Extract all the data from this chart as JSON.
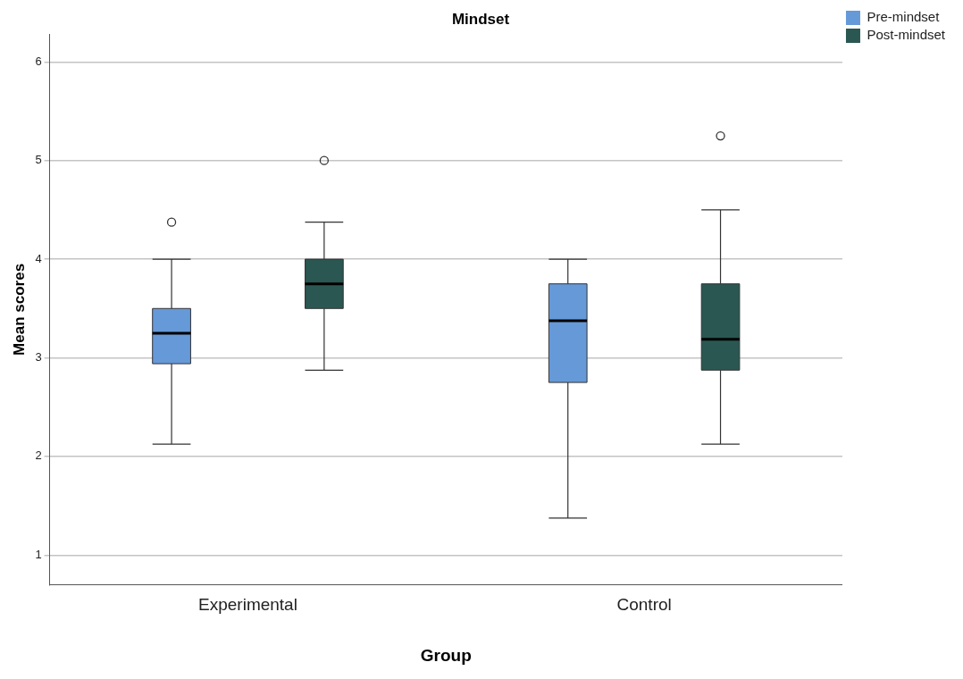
{
  "chart_data": {
    "type": "box",
    "title": "Mindset",
    "xlabel": "Group",
    "ylabel": "Mean scores",
    "categories": [
      "Experimental",
      "Control"
    ],
    "series": [
      {
        "name": "Pre-mindset",
        "color": "#6699d8",
        "boxes": [
          {
            "low": 2.125,
            "q1": 2.94,
            "median": 3.25,
            "q3": 3.5,
            "high": 4.0,
            "outliers": [
              4.375
            ]
          },
          {
            "low": 1.375,
            "q1": 2.75,
            "median": 3.375,
            "q3": 3.75,
            "high": 4.0
          }
        ]
      },
      {
        "name": "Post-mindset",
        "color": "#2a5752",
        "boxes": [
          {
            "low": 2.875,
            "q1": 3.5,
            "median": 3.75,
            "q3": 4.0,
            "high": 4.375,
            "outliers": [
              5.0
            ]
          },
          {
            "low": 2.125,
            "q1": 2.875,
            "median": 3.1875,
            "q3": 3.75,
            "high": 4.5,
            "outliers": [
              5.25
            ]
          }
        ]
      }
    ],
    "ylim": [
      0.7,
      6.28
    ],
    "yticks": [
      1,
      2,
      3,
      4,
      5,
      6
    ],
    "grid": "y",
    "legend": "top right"
  }
}
